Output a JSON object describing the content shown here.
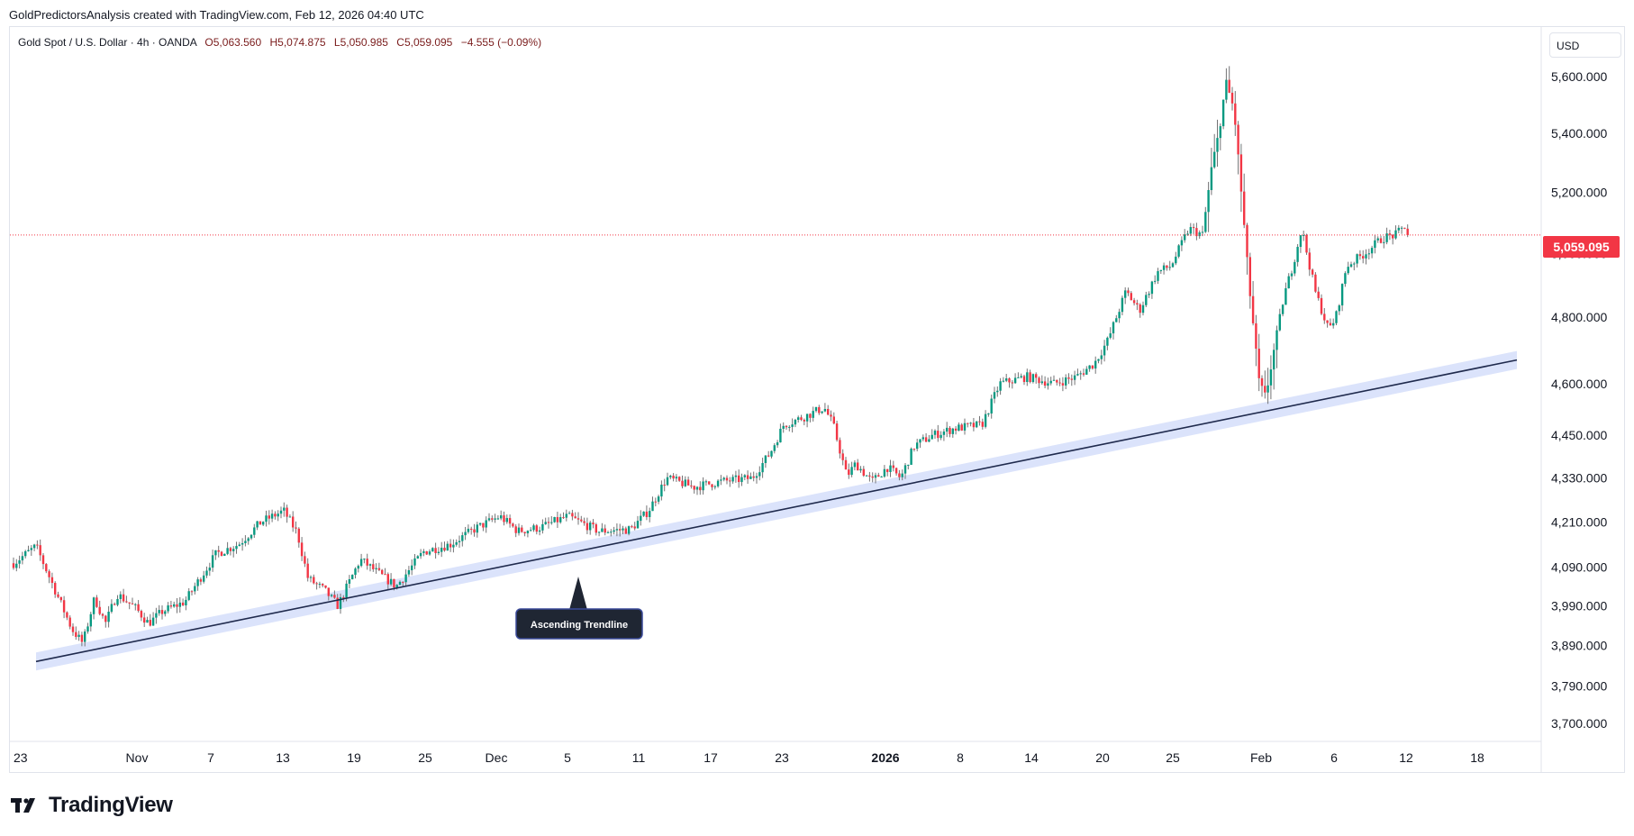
{
  "header": {
    "credit": "GoldPredictorsAnalysis created with TradingView.com, Feb 12, 2026 04:40 UTC"
  },
  "legend": {
    "symbol": "Gold Spot / U.S. Dollar · 4h · OANDA",
    "open": "O5,063.560",
    "high": "H5,074.875",
    "low": "L5,050.985",
    "close": "C5,059.095",
    "change": "−4.555 (−0.09%)"
  },
  "currency": "USD",
  "last_price": "5,059.095",
  "annotation": {
    "text": "Ascending Trendline"
  },
  "brand": {
    "name": "TradingView"
  },
  "colors": {
    "up": "#089981",
    "down": "#f23645",
    "wick": "#737375",
    "trendline": "#1f2a4d",
    "trend_band": "#dbe3fb",
    "last_price": "#f23645",
    "callout": "#1f2633"
  },
  "chart_data": {
    "type": "candlestick",
    "series": [
      {
        "name": "Gold Spot / U.S. Dollar",
        "interval": "4h",
        "source": "OANDA"
      }
    ],
    "x_axis": {
      "tick_labels": [
        "23",
        "Nov",
        "7",
        "13",
        "19",
        "25",
        "Dec",
        "5",
        "11",
        "17",
        "23",
        "2026",
        "8",
        "14",
        "20",
        "25",
        "Feb",
        "6",
        "12",
        "18"
      ],
      "bold_labels": [
        "2026"
      ]
    },
    "y_axis": {
      "scale": "log",
      "range": [
        3660,
        5780
      ],
      "tick_labels": [
        "5,600.000",
        "5,400.000",
        "5,200.000",
        "5,000.000",
        "4,800.000",
        "4,600.000",
        "4,450.000",
        "4,330.000",
        "4,210.000",
        "4,090.000",
        "3,990.000",
        "3,890.000",
        "3,790.000",
        "3,700.000"
      ],
      "ticks": [
        5600,
        5400,
        5200,
        5000,
        4800,
        4600,
        4450,
        4330,
        4210,
        4090,
        3990,
        3890,
        3790,
        3700
      ]
    },
    "last_price": 5059.095,
    "price_path": [
      [
        "Oct 23",
        4100
      ],
      [
        "Oct 25",
        4145
      ],
      [
        "Oct 28",
        3930
      ],
      [
        "Oct 29",
        3895
      ],
      [
        "Oct 30",
        4010
      ],
      [
        "Oct 31",
        3945
      ],
      [
        "Nov 1",
        4020
      ],
      [
        "Nov 3",
        3985
      ],
      [
        "Nov 4",
        3945
      ],
      [
        "Nov 5",
        3975
      ],
      [
        "Nov 7",
        4000
      ],
      [
        "Nov 9",
        4125
      ],
      [
        "Nov 11",
        4150
      ],
      [
        "Nov 12",
        4210
      ],
      [
        "Nov 13",
        4240
      ],
      [
        "Nov 14",
        4180
      ],
      [
        "Nov 15",
        4060
      ],
      [
        "Nov 17",
        4030
      ],
      [
        "Nov 18",
        3990
      ],
      [
        "Nov 19",
        4110
      ],
      [
        "Nov 21",
        4065
      ],
      [
        "Nov 22",
        4040
      ],
      [
        "Nov 24",
        4130
      ],
      [
        "Nov 27",
        4150
      ],
      [
        "Nov 29",
        4195
      ],
      [
        "Dec 1",
        4225
      ],
      [
        "Dec 2",
        4185
      ],
      [
        "Dec 4",
        4195
      ],
      [
        "Dec 5",
        4225
      ],
      [
        "Dec 7",
        4185
      ],
      [
        "Dec 9",
        4190
      ],
      [
        "Dec 11",
        4240
      ],
      [
        "Dec 12",
        4330
      ],
      [
        "Dec 14",
        4305
      ],
      [
        "Dec 16",
        4320
      ],
      [
        "Dec 18",
        4330
      ],
      [
        "Dec 20",
        4400
      ],
      [
        "Dec 22",
        4480
      ],
      [
        "Dec 24",
        4500
      ],
      [
        "Dec 26",
        4530
      ],
      [
        "Dec 27",
        4480
      ],
      [
        "Dec 28",
        4335
      ],
      [
        "Dec 29",
        4370
      ],
      [
        "Dec 30",
        4320
      ],
      [
        "Dec 31",
        4360
      ],
      [
        "Jan 2",
        4330
      ],
      [
        "Jan 3",
        4420
      ],
      [
        "Jan 5",
        4450
      ],
      [
        "Jan 7",
        4470
      ],
      [
        "Jan 9",
        4480
      ],
      [
        "Jan 11",
        4600
      ],
      [
        "Jan 13",
        4620
      ],
      [
        "Jan 15",
        4600
      ],
      [
        "Jan 16",
        4620
      ],
      [
        "Jan 18",
        4660
      ],
      [
        "Jan 20",
        4730
      ],
      [
        "Jan 22",
        4880
      ],
      [
        "Jan 23",
        4820
      ],
      [
        "Jan 24",
        4940
      ],
      [
        "Jan 25",
        4960
      ],
      [
        "Jan 26",
        5080
      ],
      [
        "Jan 27",
        5060
      ],
      [
        "Jan 28",
        5280
      ],
      [
        "Jan 29",
        5400
      ],
      [
        "Jan 29 PM",
        5580
      ],
      [
        "Jan 30",
        5480
      ],
      [
        "Jan 30 PM",
        5200
      ],
      [
        "Jan 31",
        4890
      ],
      [
        "Feb 1",
        4600
      ],
      [
        "Feb 2",
        4560
      ],
      [
        "Feb 2 PM",
        4680
      ],
      [
        "Feb 3",
        4860
      ],
      [
        "Feb 4",
        4960
      ],
      [
        "Feb 4 PM",
        5080
      ],
      [
        "Feb 5",
        4880
      ],
      [
        "Feb 6",
        4760
      ],
      [
        "Feb 6 PM",
        4800
      ],
      [
        "Feb 7",
        4960
      ],
      [
        "Feb 8",
        5000
      ],
      [
        "Feb 9",
        5050
      ],
      [
        "Feb 10",
        5060
      ],
      [
        "Feb 11",
        5090
      ],
      [
        "Feb 12",
        5059
      ]
    ],
    "trendline": {
      "from": [
        "Oct 25",
        3850
      ],
      "to": [
        "Feb 21",
        4670
      ]
    },
    "annotations": [
      "Ascending Trendline"
    ]
  }
}
